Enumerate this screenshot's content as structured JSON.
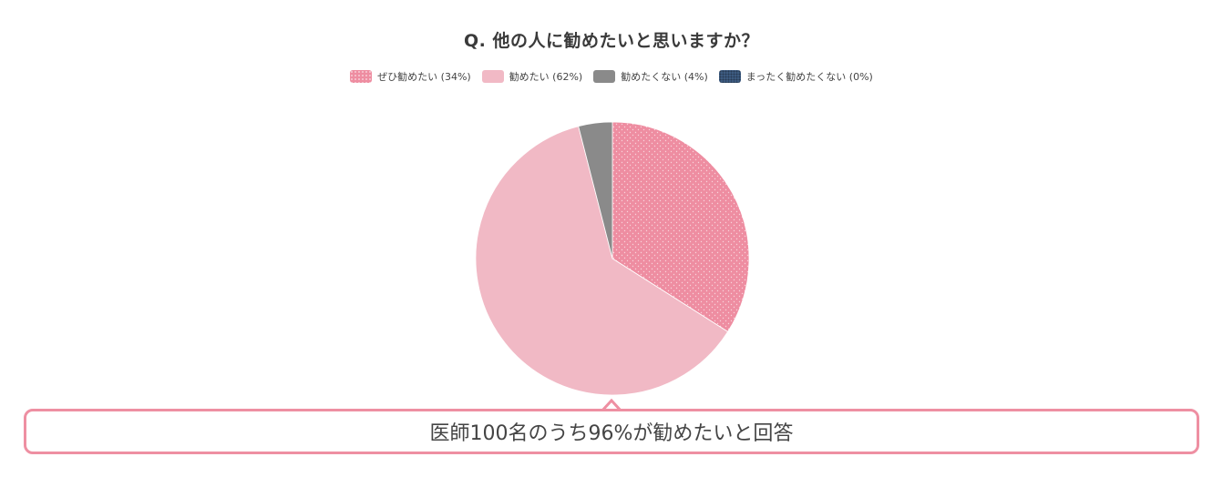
{
  "title": "Q. 他の人に勧めたいと思いますか？",
  "legend": [
    {
      "label": "ぜひ勧めたい (34%)",
      "color": "#ee8da1",
      "pattern": "dots"
    },
    {
      "label": "勧めたい (62%)",
      "color": "#f1b9c5",
      "pattern": "none"
    },
    {
      "label": "勧めたくない (4%)",
      "color": "#8a8a8a",
      "pattern": "none"
    },
    {
      "label": "まったく勧めたくない (0%)",
      "color": "#3d5b80",
      "pattern": "dots"
    }
  ],
  "callout": {
    "text": "医師100名のうち96%が勧めたいと回答",
    "border_color": "#ee8fa2"
  },
  "chart_data": {
    "type": "pie",
    "title": "Q. 他の人に勧めたいと思いますか？",
    "categories": [
      "ぜひ勧めたい",
      "勧めたい",
      "勧めたくない",
      "まったく勧めたくない"
    ],
    "values": [
      34,
      62,
      4,
      0
    ],
    "unit": "%",
    "colors": [
      "#ee8da1",
      "#f1b9c5",
      "#8a8a8a",
      "#3d5b80"
    ],
    "start_angle": "top (12 o'clock), clockwise",
    "legend_position": "top",
    "annotation": "医師100名のうち96%が勧めたいと回答"
  }
}
